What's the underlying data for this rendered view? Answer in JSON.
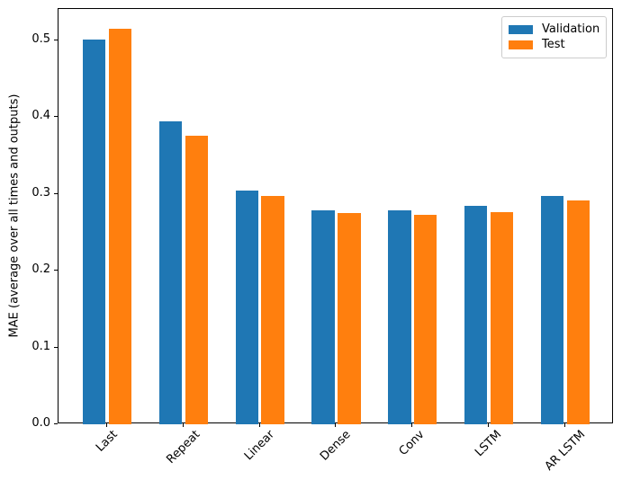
{
  "chart_data": {
    "type": "bar",
    "title": "",
    "xlabel": "",
    "ylabel": "MAE (average over all times and outputs)",
    "categories": [
      "Last",
      "Repeat",
      "Linear",
      "Dense",
      "Conv",
      "LSTM",
      "AR LSTM"
    ],
    "series": [
      {
        "name": "Validation",
        "color": "#1f77b4",
        "values": [
          0.501,
          0.395,
          0.305,
          0.279,
          0.279,
          0.285,
          0.298
        ]
      },
      {
        "name": "Test",
        "color": "#ff7f0e",
        "values": [
          0.515,
          0.376,
          0.298,
          0.275,
          0.273,
          0.276,
          0.291
        ]
      }
    ],
    "ylim": [
      0,
      0.541
    ],
    "yticks": [
      0.0,
      0.1,
      0.2,
      0.3,
      0.4,
      0.5
    ],
    "xtick_rotation": 45,
    "grid": false,
    "legend_position": "upper right"
  }
}
